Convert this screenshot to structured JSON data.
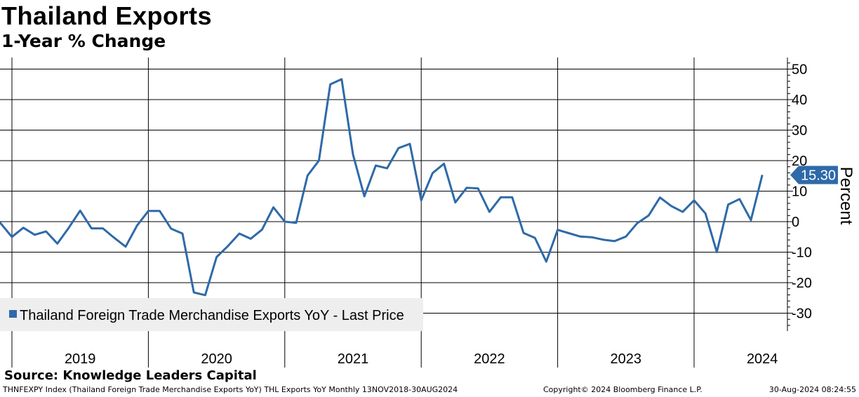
{
  "header": {
    "title": "Thailand Exports",
    "subtitle": "1-Year % Change"
  },
  "source": "Source: Knowledge Leaders Capital",
  "footer": {
    "series_info": "THNFEXPY Index (Thailand Foreign Trade Merchandise Exports YoY) THL Exports YoY  Monthly 13NOV2018-30AUG2024",
    "copyright": "Copyright© 2024 Bloomberg Finance L.P.",
    "timestamp": "30-Aug-2024 08:24:55"
  },
  "colors": {
    "line": "#2e6aa8",
    "badge": "#2e6aa8",
    "legend_bg": "#eeeeee",
    "grid": "#000000"
  },
  "chart_data": {
    "type": "line",
    "ylabel": "Percent",
    "ylim": [
      -35,
      54
    ],
    "yticks": [
      50,
      40,
      30,
      20,
      10,
      0,
      -10,
      -20,
      -30
    ],
    "ytick_labels": [
      "50",
      "40",
      "30",
      "20",
      "10",
      "0",
      "-10",
      "-20",
      "-30"
    ],
    "year_labels": [
      "2019",
      "2020",
      "2021",
      "2022",
      "2023",
      "2024"
    ],
    "grid": true,
    "last_value_label": "15.30",
    "legend": {
      "position": "bottom-left",
      "label": "Thailand Foreign Trade Merchandise Exports YoY - Last Price"
    },
    "series": [
      {
        "name": "Thailand Foreign Trade Merchandise Exports YoY - Last Price",
        "start": "2018-11",
        "frequency": "monthly",
        "values": [
          0.6,
          -0.5,
          -5.0,
          -2.0,
          -4.3,
          -3.2,
          -7.2,
          -2.0,
          3.6,
          -2.2,
          -2.2,
          -5.3,
          -8.2,
          -1.3,
          3.5,
          3.5,
          -2.3,
          -3.9,
          -23.2,
          -24.1,
          -11.6,
          -8.0,
          -3.9,
          -5.6,
          -2.6,
          4.7,
          0.0,
          -0.4,
          15.1,
          20.0,
          45.0,
          46.7,
          22.0,
          8.3,
          18.4,
          17.5,
          24.1,
          25.5,
          7.0,
          15.9,
          19.0,
          6.3,
          11.1,
          10.9,
          3.2,
          8.0,
          8.0,
          -3.7,
          -5.3,
          -13.1,
          -2.7,
          -3.8,
          -4.9,
          -5.1,
          -5.9,
          -6.4,
          -4.9,
          -0.5,
          2.0,
          7.9,
          5.1,
          3.2,
          7.0,
          2.7,
          -10.0,
          5.6,
          7.4,
          0.5,
          15.3
        ]
      }
    ]
  }
}
